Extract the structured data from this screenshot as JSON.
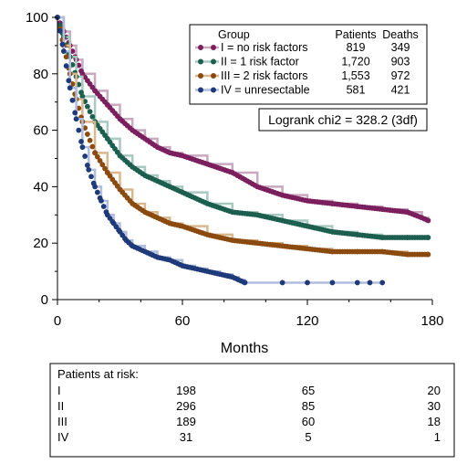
{
  "chart_data": {
    "type": "line",
    "xlabel": "Months",
    "ylabel": "",
    "xlim": [
      0,
      180
    ],
    "ylim": [
      0,
      100
    ],
    "x_ticks": [
      0,
      60,
      120,
      180
    ],
    "y_ticks": [
      0,
      20,
      40,
      60,
      80,
      100
    ],
    "legend": {
      "header": {
        "group": "Group",
        "patients": "Patients",
        "deaths": "Deaths"
      },
      "entries": [
        {
          "label": "I = no risk factors",
          "patients": "819",
          "deaths": "349"
        },
        {
          "label": "II = 1 risk factor",
          "patients": "1,720",
          "deaths": "903"
        },
        {
          "label": "III = 2 risk factors",
          "patients": "1,553",
          "deaths": "972"
        },
        {
          "label": "IV = unresectable",
          "patients": "581",
          "deaths": "421"
        }
      ]
    },
    "logrank": "Logrank chi2 = 328.2 (3df)",
    "series": [
      {
        "name": "I = no risk factors",
        "color": "#7b1f5e",
        "line_color": "#c9a8c0",
        "x": [
          0,
          3,
          6,
          9,
          12,
          18,
          24,
          30,
          36,
          42,
          48,
          54,
          60,
          72,
          84,
          96,
          108,
          120,
          132,
          144,
          156,
          168,
          175,
          178
        ],
        "y": [
          100,
          95,
          90,
          85,
          80,
          74,
          69,
          64,
          60,
          57,
          54,
          52,
          51,
          48,
          45,
          40,
          37,
          35,
          34,
          33,
          32,
          31,
          29,
          28
        ]
      },
      {
        "name": "II = 1 risk factor",
        "color": "#1c5f4e",
        "line_color": "#a8c8c0",
        "x": [
          0,
          3,
          6,
          9,
          12,
          18,
          24,
          30,
          36,
          42,
          48,
          54,
          60,
          72,
          84,
          96,
          108,
          120,
          132,
          144,
          156,
          168,
          178
        ],
        "y": [
          100,
          93,
          86,
          79,
          72,
          63,
          57,
          51,
          47,
          44,
          42,
          40,
          38,
          34,
          31,
          30,
          28,
          26,
          24,
          23,
          22,
          22,
          22
        ]
      },
      {
        "name": "III = 2 risk factors",
        "color": "#8b4a0f",
        "line_color": "#d9b890",
        "x": [
          0,
          3,
          6,
          9,
          12,
          18,
          24,
          30,
          36,
          42,
          48,
          54,
          60,
          72,
          84,
          96,
          108,
          120,
          132,
          144,
          156,
          168,
          178
        ],
        "y": [
          100,
          90,
          80,
          71,
          63,
          52,
          45,
          39,
          34,
          31,
          29,
          27,
          26,
          23,
          21,
          20,
          19,
          18,
          17,
          17,
          17,
          16,
          16
        ]
      },
      {
        "name": "IV = unresectable",
        "color": "#1f3a7a",
        "line_color": "#b0bede",
        "x": [
          0,
          3,
          6,
          9,
          12,
          15,
          18,
          21,
          24,
          27,
          30,
          33,
          36,
          42,
          48,
          54,
          60,
          66,
          72,
          78,
          84,
          87,
          90,
          108,
          120,
          132,
          144,
          150,
          156
        ],
        "y": [
          100,
          88,
          75,
          64,
          54,
          46,
          40,
          35,
          30,
          27,
          24,
          21,
          19,
          17,
          15,
          14,
          12,
          11,
          10,
          9,
          8,
          7,
          6,
          6,
          6,
          6,
          6,
          6,
          6
        ]
      }
    ]
  },
  "risk_table": {
    "title": "Patients at risk:",
    "rows": [
      {
        "group": "I",
        "values": [
          "198",
          "65",
          "20"
        ]
      },
      {
        "group": "II",
        "values": [
          "296",
          "85",
          "30"
        ]
      },
      {
        "group": "III",
        "values": [
          "189",
          "60",
          "18"
        ]
      },
      {
        "group": "IV",
        "values": [
          "31",
          "5",
          "1"
        ]
      }
    ]
  }
}
